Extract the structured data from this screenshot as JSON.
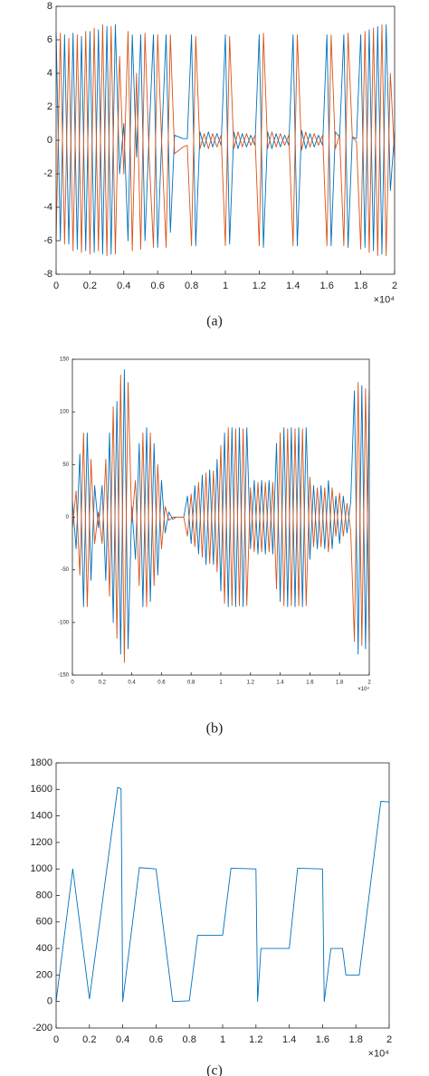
{
  "chart_data": [
    {
      "type": "line",
      "caption": "(a)",
      "x_exponent": "×10⁴",
      "xlim": [
        0,
        2
      ],
      "ylim": [
        -8,
        8
      ],
      "xticks": [
        0,
        0.2,
        0.4,
        0.6,
        0.8,
        1,
        1.2,
        1.4,
        1.6,
        1.8,
        2
      ],
      "yticks": [
        -8,
        -6,
        -4,
        -2,
        0,
        2,
        4,
        6,
        8
      ],
      "x": [
        0,
        0.025,
        0.05,
        0.075,
        0.1,
        0.125,
        0.15,
        0.175,
        0.2,
        0.225,
        0.25,
        0.275,
        0.3,
        0.325,
        0.35,
        0.375,
        0.4,
        0.425,
        0.45,
        0.475,
        0.5,
        0.525,
        0.55,
        0.575,
        0.6,
        0.625,
        0.65,
        0.675,
        0.7,
        0.725,
        0.75,
        0.775,
        0.8,
        0.825,
        0.85,
        0.875,
        0.9,
        0.925,
        0.95,
        0.975,
        1,
        1.025,
        1.05,
        1.075,
        1.1,
        1.125,
        1.15,
        1.175,
        1.2,
        1.225,
        1.25,
        1.275,
        1.3,
        1.325,
        1.35,
        1.375,
        1.4,
        1.425,
        1.45,
        1.475,
        1.5,
        1.525,
        1.55,
        1.575,
        1.6,
        1.625,
        1.65,
        1.675,
        1.7,
        1.725,
        1.75,
        1.775,
        1.8,
        1.825,
        1.85,
        1.875,
        1.9,
        1.925,
        1.95,
        1.975,
        2
      ],
      "series": [
        {
          "color": "#0072bd",
          "values": [
            6.5,
            -6,
            6.3,
            -6.2,
            6.4,
            -6.5,
            6.2,
            -6.6,
            6.5,
            -6.7,
            6.6,
            -6.8,
            6.8,
            -6.8,
            6.9,
            -2,
            1,
            -6,
            6.3,
            -1,
            6.3,
            -6,
            0.5,
            6.3,
            -6.4,
            0.4,
            6.3,
            -5.5,
            0.3,
            0.2,
            0.1,
            0.1,
            6.3,
            -6.3,
            0.5,
            -0.4,
            0.5,
            -0.4,
            0.4,
            -0.3,
            6.3,
            -6.2,
            0.5,
            -0.5,
            0.4,
            -0.4,
            0.3,
            -0.3,
            6.3,
            -6.4,
            0.5,
            -0.5,
            0.4,
            -0.4,
            0.3,
            -0.3,
            6.3,
            -6.3,
            0.6,
            -0.5,
            0.4,
            -0.4,
            0.3,
            -0.3,
            6.3,
            -6.3,
            0.5,
            0.2,
            6.3,
            -6.4,
            0.2,
            0.1,
            6.3,
            -6.4,
            6.6,
            -6.6,
            6.8,
            -6.8,
            6.9,
            -3,
            0.5
          ]
        },
        {
          "color": "#d95319",
          "values": [
            -6,
            6.4,
            -6.2,
            6.1,
            -6.6,
            6.3,
            -6.7,
            6.5,
            -6.8,
            6.7,
            -6.6,
            6.9,
            -6.9,
            6.8,
            -6.8,
            5,
            -2,
            6.5,
            -6.6,
            4,
            -6.5,
            6.4,
            -1,
            -6.4,
            6.3,
            -0.5,
            -6.4,
            6.3,
            -0.8,
            -0.6,
            -0.4,
            -0.3,
            -6.3,
            6.2,
            -0.5,
            0.4,
            -0.5,
            0.4,
            -0.4,
            0.3,
            -6.3,
            6.2,
            -0.5,
            0.5,
            -0.4,
            0.4,
            -0.3,
            0.3,
            -6.3,
            6.4,
            -0.5,
            0.5,
            -0.4,
            0.4,
            -0.3,
            0.3,
            -6.3,
            6.3,
            -0.6,
            0.5,
            -0.4,
            0.4,
            -0.3,
            0.3,
            -6.3,
            6.3,
            -0.5,
            0.3,
            -6.3,
            6.4,
            0.2,
            -0.1,
            -6.5,
            6.5,
            -6.7,
            6.7,
            -6.9,
            6.9,
            -6.9,
            4,
            -1
          ]
        }
      ]
    },
    {
      "type": "line",
      "caption": "(b)",
      "x_exponent": "×10⁴",
      "xlim": [
        0,
        2
      ],
      "ylim": [
        -150,
        150
      ],
      "xticks": [
        0,
        0.2,
        0.4,
        0.6,
        0.8,
        1,
        1.2,
        1.4,
        1.6,
        1.8,
        2
      ],
      "yticks": [
        -150,
        -100,
        -50,
        0,
        50,
        100,
        150
      ],
      "x": [
        0,
        0.025,
        0.05,
        0.075,
        0.1,
        0.125,
        0.15,
        0.175,
        0.2,
        0.225,
        0.25,
        0.275,
        0.3,
        0.325,
        0.35,
        0.375,
        0.4,
        0.425,
        0.45,
        0.475,
        0.5,
        0.525,
        0.55,
        0.575,
        0.6,
        0.625,
        0.65,
        0.675,
        0.7,
        0.725,
        0.75,
        0.775,
        0.8,
        0.825,
        0.85,
        0.875,
        0.9,
        0.925,
        0.95,
        0.975,
        1,
        1.025,
        1.05,
        1.075,
        1.1,
        1.125,
        1.15,
        1.175,
        1.2,
        1.225,
        1.25,
        1.275,
        1.3,
        1.325,
        1.35,
        1.375,
        1.4,
        1.425,
        1.45,
        1.475,
        1.5,
        1.525,
        1.55,
        1.575,
        1.6,
        1.625,
        1.65,
        1.675,
        1.7,
        1.725,
        1.75,
        1.775,
        1.8,
        1.825,
        1.85,
        1.875,
        1.9,
        1.925,
        1.95,
        1.975,
        2
      ],
      "series": [
        {
          "color": "#0072bd",
          "values": [
            15,
            -30,
            60,
            -85,
            80,
            -60,
            30,
            -10,
            30,
            -60,
            80,
            -100,
            110,
            -130,
            140,
            -125,
            10,
            -40,
            70,
            -85,
            85,
            -80,
            70,
            -55,
            35,
            -15,
            5,
            -2,
            0,
            0,
            0,
            20,
            -25,
            30,
            -35,
            40,
            -45,
            45,
            -45,
            55,
            -70,
            80,
            -85,
            85,
            -85,
            85,
            -85,
            85,
            -30,
            35,
            -35,
            35,
            -35,
            35,
            -35,
            70,
            -80,
            85,
            -85,
            85,
            -85,
            85,
            -85,
            85,
            -40,
            30,
            -30,
            30,
            -30,
            35,
            -30,
            20,
            -25,
            20,
            -15,
            15,
            120,
            -130,
            125,
            -125,
            120
          ]
        },
        {
          "color": "#d95319",
          "values": [
            -10,
            25,
            -55,
            80,
            -85,
            55,
            -25,
            5,
            -25,
            55,
            -75,
            105,
            -115,
            135,
            -138,
            128,
            -5,
            35,
            -65,
            80,
            -85,
            80,
            -65,
            50,
            -30,
            10,
            -3,
            0,
            0,
            0,
            0,
            -18,
            22,
            -28,
            33,
            -38,
            42,
            -44,
            44,
            -52,
            68,
            -82,
            85,
            -84,
            84,
            -84,
            84,
            -84,
            28,
            -33,
            33,
            -33,
            33,
            -33,
            33,
            -68,
            80,
            -84,
            84,
            -84,
            84,
            -84,
            84,
            -84,
            38,
            -28,
            28,
            -28,
            28,
            -33,
            28,
            -18,
            23,
            -18,
            13,
            -13,
            -118,
            128,
            -122,
            122,
            -118
          ]
        }
      ]
    },
    {
      "type": "line",
      "caption": "(c)",
      "x_exponent": "×10⁴",
      "xlim": [
        0,
        2
      ],
      "ylim": [
        -200,
        1800
      ],
      "xticks": [
        0,
        0.2,
        0.4,
        0.6,
        0.8,
        1,
        1.2,
        1.4,
        1.6,
        1.8,
        2
      ],
      "yticks": [
        -200,
        0,
        200,
        400,
        600,
        800,
        1000,
        1200,
        1400,
        1600,
        1800
      ],
      "x": [
        0,
        0.1,
        0.2,
        0.37,
        0.39,
        0.4,
        0.5,
        0.6,
        0.7,
        0.8,
        0.85,
        1,
        1.05,
        1.2,
        1.21,
        1.23,
        1.4,
        1.45,
        1.6,
        1.61,
        1.65,
        1.72,
        1.74,
        1.82,
        1.95,
        2
      ],
      "series": [
        {
          "color": "#0072bd",
          "values": [
            0,
            1000,
            20,
            1615,
            1605,
            0,
            1010,
            1000,
            0,
            5,
            500,
            500,
            1005,
            1000,
            0,
            400,
            400,
            1005,
            1000,
            0,
            400,
            400,
            200,
            200,
            1510,
            1505
          ]
        }
      ]
    }
  ]
}
